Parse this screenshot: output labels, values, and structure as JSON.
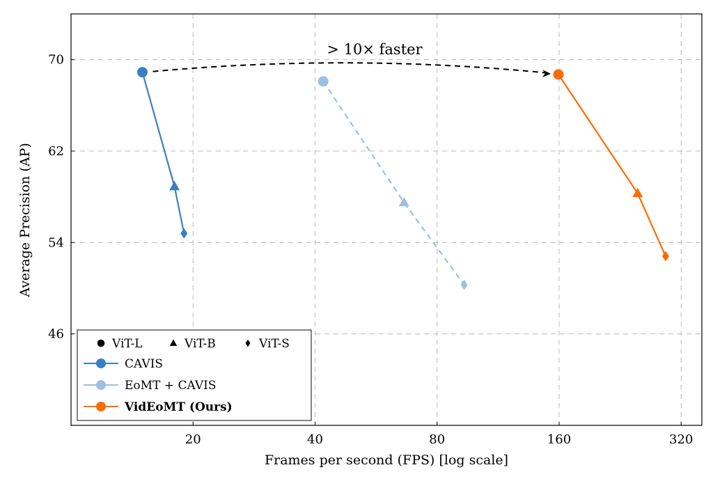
{
  "chart_data": {
    "type": "line",
    "xlabel": "Frames per second (FPS) [log scale]",
    "ylabel": "Average Precision (AP)",
    "x_scale": "log2",
    "xlim": [
      10,
      360
    ],
    "ylim": [
      38,
      74
    ],
    "xticks": [
      20,
      40,
      80,
      160,
      320
    ],
    "yticks": [
      46,
      54,
      62,
      70
    ],
    "grid": true,
    "legend_placement": "bottom-left",
    "marker_legend": [
      {
        "marker": "circle",
        "label": "ViT-L"
      },
      {
        "marker": "triangle",
        "label": "ViT-B"
      },
      {
        "marker": "diamond",
        "label": "ViT-S"
      }
    ],
    "series": [
      {
        "name": "CAVIS",
        "color": "#3a7fc3",
        "dashed": false,
        "bold": false,
        "points": [
          {
            "model": "ViT-L",
            "x": 15.0,
            "y": 68.9
          },
          {
            "model": "ViT-B",
            "x": 18.0,
            "y": 58.9
          },
          {
            "model": "ViT-S",
            "x": 19.0,
            "y": 54.8
          }
        ]
      },
      {
        "name": "EoMT + CAVIS",
        "color": "#9cc0e1",
        "dashed": true,
        "bold": false,
        "points": [
          {
            "model": "ViT-L",
            "x": 41.9,
            "y": 68.1
          },
          {
            "model": "ViT-B",
            "x": 66.3,
            "y": 57.5
          },
          {
            "model": "ViT-S",
            "x": 93.3,
            "y": 50.3
          }
        ]
      },
      {
        "name": "VidEoMT (Ours)",
        "color": "#ff6b00",
        "dashed": false,
        "bold": true,
        "points": [
          {
            "model": "ViT-L",
            "x": 159.4,
            "y": 68.7
          },
          {
            "model": "ViT-B",
            "x": 250,
            "y": 58.3
          },
          {
            "model": "ViT-S",
            "x": 293,
            "y": 52.8
          }
        ]
      }
    ],
    "annotation": {
      "text": "> 10× faster",
      "from_series": 0,
      "to_series": 2
    }
  }
}
